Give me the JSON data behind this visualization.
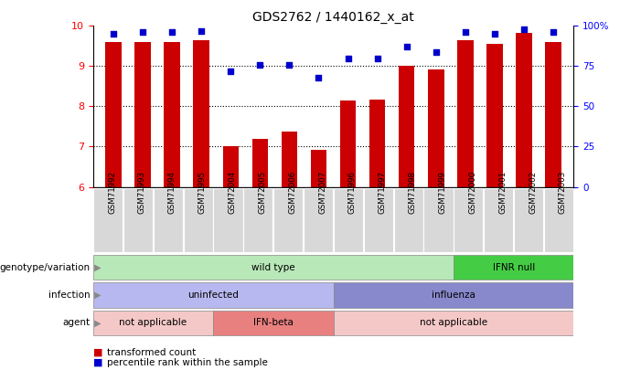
{
  "title": "GDS2762 / 1440162_x_at",
  "samples": [
    "GSM71992",
    "GSM71993",
    "GSM71994",
    "GSM71995",
    "GSM72004",
    "GSM72005",
    "GSM72006",
    "GSM72007",
    "GSM71996",
    "GSM71997",
    "GSM71998",
    "GSM71999",
    "GSM72000",
    "GSM72001",
    "GSM72002",
    "GSM72003"
  ],
  "bar_values": [
    9.6,
    9.6,
    9.6,
    9.65,
    7.02,
    7.2,
    7.38,
    6.92,
    8.15,
    8.18,
    9.0,
    8.92,
    9.65,
    9.55,
    9.82,
    9.6
  ],
  "dot_values": [
    95,
    96,
    96,
    97,
    72,
    76,
    76,
    68,
    80,
    80,
    87,
    84,
    96,
    95,
    98,
    96
  ],
  "bar_bottom": 6.0,
  "ylim": [
    6.0,
    10.0
  ],
  "y2lim": [
    0,
    100
  ],
  "yticks": [
    6,
    7,
    8,
    9,
    10
  ],
  "y2ticks": [
    0,
    25,
    50,
    75,
    100
  ],
  "bar_color": "#cc0000",
  "dot_color": "#0000cc",
  "background_color": "#ffffff",
  "annotations": {
    "genotype_variation": {
      "label": "genotype/variation",
      "groups": [
        {
          "text": "wild type",
          "start": 0,
          "end": 11,
          "color": "#b8e8b8"
        },
        {
          "text": "IFNR null",
          "start": 12,
          "end": 15,
          "color": "#44cc44"
        }
      ]
    },
    "infection": {
      "label": "infection",
      "groups": [
        {
          "text": "uninfected",
          "start": 0,
          "end": 7,
          "color": "#b8b8f0"
        },
        {
          "text": "influenza",
          "start": 8,
          "end": 15,
          "color": "#8888cc"
        }
      ]
    },
    "agent": {
      "label": "agent",
      "groups": [
        {
          "text": "not applicable",
          "start": 0,
          "end": 3,
          "color": "#f5c8c8"
        },
        {
          "text": "IFN-beta",
          "start": 4,
          "end": 7,
          "color": "#e88080"
        },
        {
          "text": "not applicable",
          "start": 8,
          "end": 15,
          "color": "#f5c8c8"
        }
      ]
    }
  }
}
